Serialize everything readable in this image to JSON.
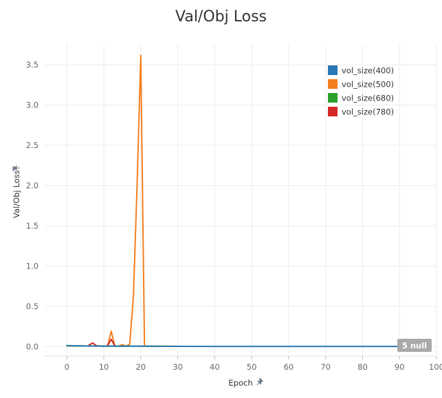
{
  "chart_data": {
    "type": "line",
    "title": "Val/Obj Loss",
    "xlabel": "Epoch",
    "ylabel": "Val/Obj Loss",
    "xlim": [
      -6,
      100
    ],
    "ylim": [
      -0.1,
      3.75
    ],
    "xticks": [
      0,
      10,
      20,
      30,
      40,
      50,
      60,
      70,
      80,
      90,
      100
    ],
    "yticks": [
      0.0,
      0.5,
      1.0,
      1.5,
      2.0,
      2.5,
      3.0,
      3.5
    ],
    "xtick_labels": [
      "0",
      "10",
      "20",
      "30",
      "40",
      "50",
      "60",
      "70",
      "80",
      "90",
      "100"
    ],
    "ytick_labels": [
      "0.0",
      "0.5",
      "1.0",
      "1.5",
      "2.0",
      "2.5",
      "3.0",
      "3.5"
    ],
    "grid": true,
    "legend_position": "top-right",
    "null_badge": "5 null",
    "series": [
      {
        "name": "vol_size(400)",
        "color": "#2878b5",
        "x": [
          0,
          5,
          10,
          15,
          20,
          25,
          30,
          40,
          50,
          60,
          70,
          80,
          90,
          95
        ],
        "y": [
          0.012,
          0.007,
          0.005,
          0.004,
          0.004,
          0.003,
          0.003,
          0.002,
          0.002,
          0.002,
          0.002,
          0.002,
          0.002,
          0.002
        ]
      },
      {
        "name": "vol_size(500)",
        "color": "#f47f1e",
        "x": [
          0,
          2,
          4,
          6,
          8,
          10,
          11,
          12,
          13,
          14,
          15,
          16,
          17,
          18,
          19,
          20,
          21,
          22,
          24,
          26,
          28,
          30
        ],
        "y": [
          0.01,
          0.008,
          0.008,
          0.007,
          0.008,
          0.006,
          0.005,
          0.19,
          0.005,
          0.004,
          0.025,
          0.006,
          0.03,
          0.62,
          2.0,
          3.62,
          0.004,
          0.006,
          0.005,
          0.004,
          0.004,
          0.003
        ]
      },
      {
        "name": "vol_size(680)",
        "color": "#2ca02c",
        "x": [
          0,
          5,
          10,
          15,
          20,
          30
        ],
        "y": [
          0.01,
          0.008,
          0.006,
          0.005,
          0.004,
          0.003
        ]
      },
      {
        "name": "vol_size(780)",
        "color": "#d62728",
        "x": [
          6,
          7,
          8,
          9,
          10,
          11,
          12,
          13
        ],
        "y": [
          0.02,
          0.045,
          0.01,
          0.008,
          0.005,
          0.01,
          0.09,
          0.005
        ]
      }
    ]
  }
}
